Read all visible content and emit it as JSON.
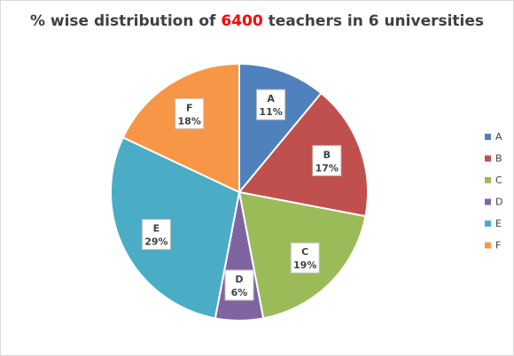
{
  "chart_data": {
    "type": "pie",
    "title": {
      "prefix": "% wise distribution of ",
      "highlight": "6400",
      "suffix": " teachers in 6 universities",
      "highlight_color": "#ff0000"
    },
    "categories": [
      "A",
      "B",
      "C",
      "D",
      "E",
      "F"
    ],
    "values": [
      11,
      17,
      19,
      6,
      29,
      18
    ],
    "value_labels": [
      "11%",
      "17%",
      "19%",
      "6%",
      "29%",
      "18%"
    ],
    "colors": [
      "#4f81bd",
      "#c0504d",
      "#9bbb59",
      "#8064a2",
      "#4bacc6",
      "#f79646"
    ],
    "legend_position": "right",
    "data_label_style": "callout"
  }
}
